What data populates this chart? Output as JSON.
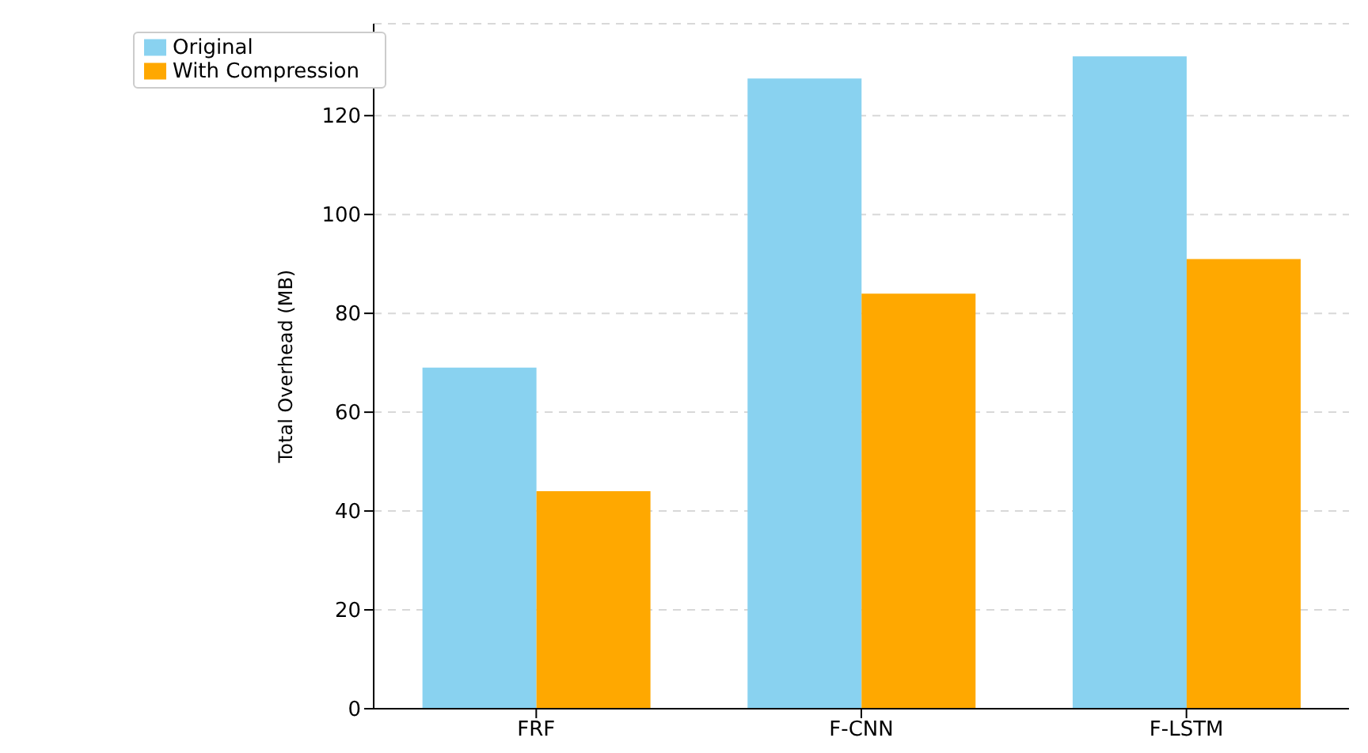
{
  "chart_data": {
    "type": "bar",
    "ylabel": "Total Overhead (MB)",
    "categories": [
      "FRF",
      "F-CNN",
      "F-LSTM"
    ],
    "series": [
      {
        "name": "Original",
        "color": "#89d2f0",
        "values": [
          69,
          127.5,
          132
        ]
      },
      {
        "name": "With Compression",
        "color": "#ffa800",
        "values": [
          44,
          84,
          91
        ]
      }
    ],
    "ylim": [
      0,
      138.6
    ],
    "yticks": [
      0,
      20,
      40,
      60,
      80,
      100,
      120
    ],
    "grid": "y",
    "legend": "top left"
  }
}
